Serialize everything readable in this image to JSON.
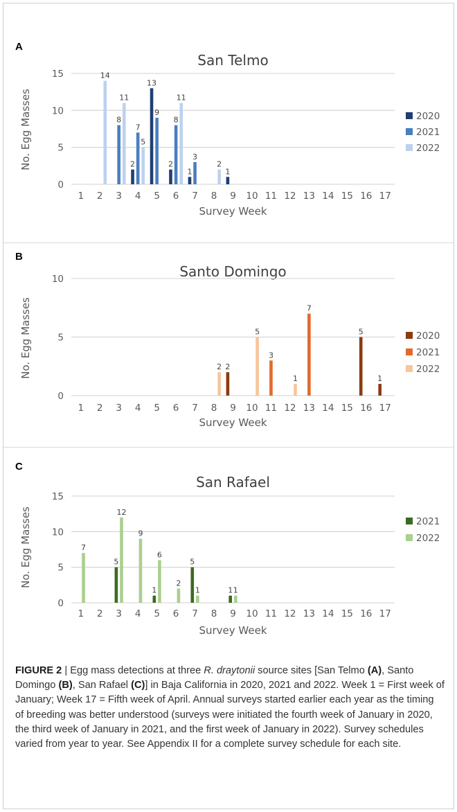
{
  "chart_data": [
    {
      "panel": "A",
      "type": "bar",
      "title": "San Telmo",
      "xlabel": "Survey Week",
      "ylabel": "No. Egg Masses",
      "ylim": [
        0,
        15
      ],
      "yticks": [
        0,
        5,
        10,
        15
      ],
      "grid": true,
      "legend": "right",
      "categories": [
        "1",
        "2",
        "3",
        "4",
        "5",
        "6",
        "7",
        "8",
        "9",
        "10",
        "11",
        "12",
        "13",
        "14",
        "15",
        "16",
        "17"
      ],
      "series": [
        {
          "name": "2020",
          "color": "#1f3f73",
          "values": [
            0,
            0,
            0,
            2,
            13,
            2,
            1,
            0,
            1,
            0,
            0,
            0,
            0,
            0,
            0,
            0,
            0
          ]
        },
        {
          "name": "2021",
          "color": "#4a7ebf",
          "values": [
            0,
            0,
            8,
            7,
            9,
            8,
            3,
            0,
            0,
            0,
            0,
            0,
            0,
            0,
            0,
            0,
            0
          ]
        },
        {
          "name": "2022",
          "color": "#bcd2ee",
          "values": [
            0,
            14,
            11,
            5,
            0,
            11,
            0,
            2,
            0,
            0,
            0,
            0,
            0,
            0,
            0,
            0,
            0
          ]
        }
      ]
    },
    {
      "panel": "B",
      "type": "bar",
      "title": "Santo Domingo",
      "xlabel": "Survey Week",
      "ylabel": "No. Egg Masses",
      "ylim": [
        0,
        10
      ],
      "yticks": [
        0,
        5,
        10
      ],
      "grid": true,
      "legend": "right",
      "categories": [
        "1",
        "2",
        "3",
        "4",
        "5",
        "6",
        "7",
        "8",
        "9",
        "10",
        "11",
        "12",
        "13",
        "14",
        "15",
        "16",
        "17"
      ],
      "series": [
        {
          "name": "2020",
          "color": "#8c3a12",
          "values": [
            0,
            0,
            0,
            0,
            0,
            0,
            0,
            0,
            2,
            0,
            0,
            0,
            0,
            0,
            0,
            5,
            1
          ]
        },
        {
          "name": "2021",
          "color": "#e2692a",
          "values": [
            0,
            0,
            0,
            0,
            0,
            0,
            0,
            0,
            0,
            0,
            3,
            0,
            7,
            0,
            0,
            0,
            0
          ]
        },
        {
          "name": "2022",
          "color": "#f6c59b",
          "values": [
            0,
            0,
            0,
            0,
            0,
            0,
            0,
            2,
            0,
            5,
            0,
            1,
            0,
            0,
            0,
            0,
            0
          ]
        }
      ]
    },
    {
      "panel": "C",
      "type": "bar",
      "title": "San Rafael",
      "xlabel": "Survey Week",
      "ylabel": "No. Egg Masses",
      "ylim": [
        0,
        15
      ],
      "yticks": [
        0,
        5,
        10,
        15
      ],
      "grid": true,
      "legend": "right",
      "categories": [
        "1",
        "2",
        "3",
        "4",
        "5",
        "6",
        "7",
        "8",
        "9",
        "10",
        "11",
        "12",
        "13",
        "14",
        "15",
        "16",
        "17"
      ],
      "series": [
        {
          "name": "2021",
          "color": "#3b6b22",
          "values": [
            0,
            0,
            5,
            0,
            1,
            0,
            5,
            0,
            1,
            0,
            0,
            0,
            0,
            0,
            0,
            0,
            0
          ]
        },
        {
          "name": "2022",
          "color": "#a9d08e",
          "values": [
            7,
            0,
            12,
            9,
            6,
            2,
            1,
            0,
            1,
            0,
            0,
            0,
            0,
            0,
            0,
            0,
            0
          ]
        }
      ]
    }
  ],
  "caption": {
    "figure_label": "FIGURE 2",
    "separator": " | ",
    "seg1": "Egg mass detections at three ",
    "species": "R. draytonii",
    "seg2": " source sites [San Telmo ",
    "ref_a": "(A)",
    "seg3": ", Santo Domingo ",
    "ref_b": "(B)",
    "seg4": ", San Rafael ",
    "ref_c": "(C)",
    "seg5": "] in Baja California in 2020, 2021 and 2022. Week 1 = First week of January; Week 17 = Fifth week of April. Annual surveys started earlier each year as the timing of breeding was better understood (surveys were initiated the fourth week of January in 2020, the third week of January in 2021, and the first week of January in 2022). Survey schedules varied from year to year. See Appendix II for a complete survey schedule for each site."
  }
}
